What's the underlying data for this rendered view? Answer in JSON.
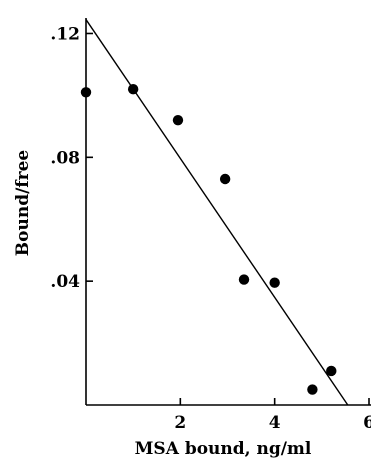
{
  "chart_data": {
    "type": "scatter",
    "title": "",
    "xlabel": "MSA bound, ng/ml",
    "ylabel": "Bound/free",
    "xlim": [
      0,
      6
    ],
    "ylim": [
      0,
      0.125
    ],
    "x_ticks": [
      2,
      4,
      6
    ],
    "x_tick_labels": [
      "2",
      "4",
      "6"
    ],
    "y_ticks": [
      0.04,
      0.08,
      0.12
    ],
    "y_tick_labels": [
      ".04",
      ".08",
      ".12"
    ],
    "grid": false,
    "legend": "none",
    "marker_color": "#000000",
    "series": [
      {
        "points": [
          {
            "x": 0.0,
            "y": 0.101
          },
          {
            "x": 1.0,
            "y": 0.102
          },
          {
            "x": 1.95,
            "y": 0.092
          },
          {
            "x": 2.95,
            "y": 0.073
          },
          {
            "x": 3.35,
            "y": 0.0405
          },
          {
            "x": 4.0,
            "y": 0.0395
          },
          {
            "x": 4.8,
            "y": 0.005
          },
          {
            "x": 5.2,
            "y": 0.011
          }
        ]
      }
    ],
    "fit_line": {
      "x": [
        0.0,
        5.55
      ],
      "y": [
        0.1245,
        0.0
      ]
    }
  }
}
